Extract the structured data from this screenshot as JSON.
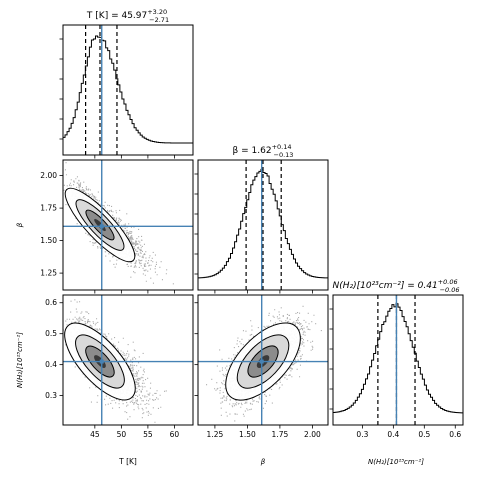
{
  "chart_data": {
    "type": "corner",
    "parameters": [
      {
        "key": "T",
        "axis_label": "T [K]",
        "title": "T [K] = 45.97",
        "title_sup": "+3.20",
        "title_sub": "−2.71",
        "truth": 46.3,
        "quantiles": [
          43.26,
          45.97,
          49.17
        ],
        "range": [
          39.0,
          63.5
        ],
        "ticks": [
          45,
          50,
          55,
          60
        ],
        "tick_labels": [
          "45",
          "50",
          "55",
          "60"
        ],
        "hist_peak": 45.5,
        "hist_sigma_left": 2.6,
        "hist_sigma_right": 3.6
      },
      {
        "key": "beta",
        "axis_label": "β",
        "title": "β = 1.62",
        "title_sup": "+0.14",
        "title_sub": "−0.13",
        "truth": 1.61,
        "quantiles": [
          1.49,
          1.62,
          1.76
        ],
        "range": [
          1.12,
          2.12
        ],
        "ticks": [
          1.25,
          1.5,
          1.75,
          2.0
        ],
        "tick_labels": [
          "1.25",
          "1.50",
          "1.75",
          "2.00"
        ],
        "hist_peak": 1.61,
        "hist_sigma_left": 0.135,
        "hist_sigma_right": 0.135
      },
      {
        "key": "NH2",
        "axis_label": "N(H₂)[10²³cm⁻²]",
        "title": "N(H₂)[10²³cm⁻²] = 0.41",
        "title_sup": "+0.06",
        "title_sub": "−0.06",
        "truth": 0.41,
        "quantiles": [
          0.35,
          0.41,
          0.47
        ],
        "range": [
          0.205,
          0.625
        ],
        "ticks": [
          0.3,
          0.4,
          0.5,
          0.6
        ],
        "tick_labels": [
          "0.3",
          "0.4",
          "0.5",
          "0.6"
        ],
        "hist_peak": 0.405,
        "hist_sigma_left": 0.06,
        "hist_sigma_right": 0.06
      }
    ],
    "correlations": {
      "T_beta": -0.85,
      "T_NH2": -0.7,
      "beta_NH2": 0.6
    },
    "truth_color": "#4682b4",
    "contour_levels": 3
  }
}
